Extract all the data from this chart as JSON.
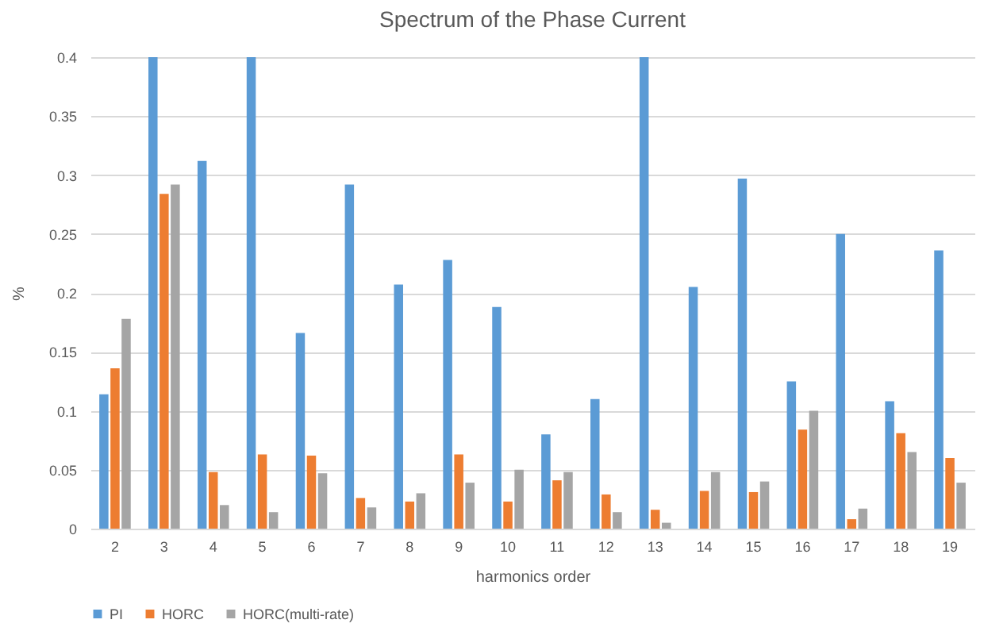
{
  "chart_data": {
    "type": "bar",
    "title": "Spectrum of the Phase Current",
    "xlabel": "harmonics order",
    "ylabel": "%",
    "categories": [
      "2",
      "3",
      "4",
      "5",
      "6",
      "7",
      "8",
      "9",
      "10",
      "11",
      "12",
      "13",
      "14",
      "15",
      "16",
      "17",
      "18",
      "19"
    ],
    "series": [
      {
        "name": "PI",
        "color": "#5b9bd5",
        "values": [
          0.114,
          0.4,
          0.312,
          0.4,
          0.166,
          0.292,
          0.207,
          0.228,
          0.188,
          0.08,
          0.11,
          0.4,
          0.205,
          0.297,
          0.125,
          0.25,
          0.108,
          0.236
        ]
      },
      {
        "name": "HORC",
        "color": "#ed7d31",
        "values": [
          0.136,
          0.284,
          0.048,
          0.063,
          0.062,
          0.026,
          0.023,
          0.063,
          0.023,
          0.041,
          0.029,
          0.016,
          0.032,
          0.031,
          0.084,
          0.008,
          0.081,
          0.06
        ]
      },
      {
        "name": "HORC(multi-rate)",
        "color": "#a5a5a5",
        "values": [
          0.178,
          0.292,
          0.02,
          0.014,
          0.047,
          0.018,
          0.03,
          0.039,
          0.05,
          0.048,
          0.014,
          0.005,
          0.048,
          0.04,
          0.1,
          0.017,
          0.065,
          0.039
        ]
      }
    ],
    "ylim": [
      0,
      0.4
    ],
    "yticks": [
      0,
      0.05,
      0.1,
      0.15,
      0.2,
      0.25,
      0.3,
      0.35,
      0.4
    ],
    "grid": "y",
    "legend": "bottom"
  }
}
